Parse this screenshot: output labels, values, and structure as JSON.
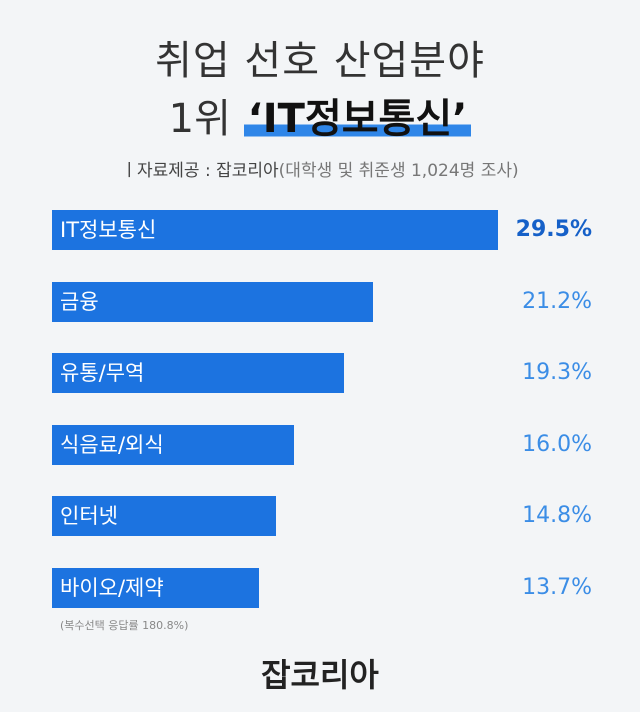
{
  "title": {
    "line1": "취업 선호 산업분야",
    "line2_prefix": "1위 ",
    "line2_highlight": "‘IT정보통신’"
  },
  "source": {
    "prefix": "ㅣ자료제공 : 잡코리아",
    "survey": "(대학생 및 취준생 1,024명 조사)"
  },
  "chart_data": {
    "type": "bar",
    "orientation": "horizontal",
    "categories": [
      "IT정보통신",
      "금융",
      "유통/무역",
      "식음료/외식",
      "인터넷",
      "바이오/제약"
    ],
    "values": [
      29.5,
      21.2,
      19.3,
      16.0,
      14.8,
      13.7
    ],
    "value_labels": [
      "29.5%",
      "21.2%",
      "19.3%",
      "16.0%",
      "14.8%",
      "13.7%"
    ],
    "unit": "%",
    "colors": {
      "bar": "#1c73e0",
      "value": "#3b8de6",
      "top_value": "#1560c8"
    }
  },
  "footnote": "(복수선택 응답률 180.8%)",
  "brand": "잡코리아"
}
